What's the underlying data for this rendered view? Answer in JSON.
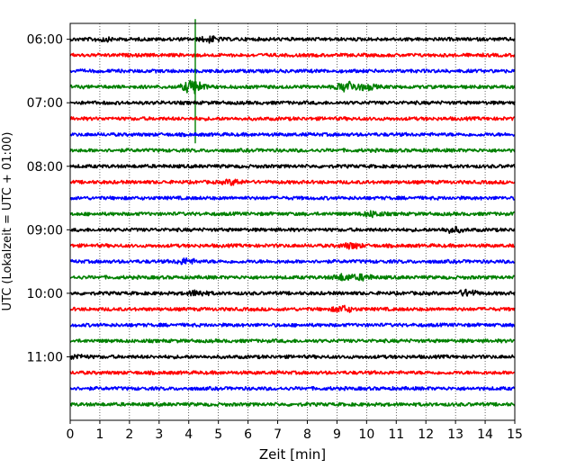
{
  "chart_data": {
    "type": "line",
    "title": "",
    "xlabel": "Zeit  [min]",
    "ylabel": "UTC (Lokalzeit = UTC + 01:00)",
    "xlim": [
      0,
      15
    ],
    "x_ticks": [
      "0",
      "1",
      "2",
      "3",
      "4",
      "5",
      "6",
      "7",
      "8",
      "9",
      "10",
      "11",
      "12",
      "13",
      "14",
      "15"
    ],
    "y_range": [
      "05:45",
      "12:00"
    ],
    "y_ticks": [
      "06:00",
      "07:00",
      "08:00",
      "09:00",
      "10:00",
      "11:00"
    ],
    "grid": "vertical dotted lines at each minute",
    "trace_interval_minutes": 15,
    "trace_colors": [
      "#000000",
      "#ff0000",
      "#0000ff",
      "#008000"
    ],
    "traces": [
      {
        "start": "06:00",
        "color": "#000000",
        "events": [
          {
            "t": 4.7,
            "amp": 0.35
          },
          {
            "t": 1.1,
            "amp": 0.2
          }
        ]
      },
      {
        "start": "06:15",
        "color": "#ff0000",
        "events": []
      },
      {
        "start": "06:30",
        "color": "#0000ff",
        "events": []
      },
      {
        "start": "06:45",
        "color": "#008000",
        "events": [
          {
            "t": 4.15,
            "amp": 1.0
          },
          {
            "t": 9.35,
            "amp": 0.75
          },
          {
            "t": 10.0,
            "amp": 0.35
          },
          {
            "t": 4.22,
            "spike": 3.2
          }
        ]
      },
      {
        "start": "07:00",
        "color": "#000000",
        "events": []
      },
      {
        "start": "07:15",
        "color": "#ff0000",
        "events": []
      },
      {
        "start": "07:30",
        "color": "#0000ff",
        "events": []
      },
      {
        "start": "07:45",
        "color": "#008000",
        "events": []
      },
      {
        "start": "08:00",
        "color": "#000000",
        "events": []
      },
      {
        "start": "08:15",
        "color": "#ff0000",
        "events": [
          {
            "t": 5.5,
            "amp": 0.3
          }
        ]
      },
      {
        "start": "08:30",
        "color": "#0000ff",
        "events": []
      },
      {
        "start": "08:45",
        "color": "#008000",
        "events": [
          {
            "t": 10.2,
            "amp": 0.35
          }
        ]
      },
      {
        "start": "09:00",
        "color": "#000000",
        "events": [
          {
            "t": 12.9,
            "amp": 0.35
          }
        ]
      },
      {
        "start": "09:15",
        "color": "#ff0000",
        "events": [
          {
            "t": 9.5,
            "amp": 0.35
          }
        ]
      },
      {
        "start": "09:30",
        "color": "#0000ff",
        "events": [
          {
            "t": 3.9,
            "amp": 0.35
          }
        ]
      },
      {
        "start": "09:45",
        "color": "#008000",
        "events": [
          {
            "t": 9.2,
            "amp": 0.4
          },
          {
            "t": 9.9,
            "amp": 0.35
          }
        ]
      },
      {
        "start": "10:00",
        "color": "#000000",
        "events": [
          {
            "t": 4.3,
            "amp": 0.35
          },
          {
            "t": 13.4,
            "amp": 0.4
          }
        ]
      },
      {
        "start": "10:15",
        "color": "#ff0000",
        "events": [
          {
            "t": 9.2,
            "amp": 0.4
          }
        ]
      },
      {
        "start": "10:30",
        "color": "#0000ff",
        "events": []
      },
      {
        "start": "10:45",
        "color": "#008000",
        "events": []
      },
      {
        "start": "11:00",
        "color": "#000000",
        "events": [
          {
            "t": 0.2,
            "amp": 0.25
          }
        ]
      },
      {
        "start": "11:15",
        "color": "#ff0000",
        "events": []
      },
      {
        "start": "11:30",
        "color": "#0000ff",
        "events": []
      },
      {
        "start": "11:45",
        "color": "#008000",
        "events": []
      }
    ]
  }
}
